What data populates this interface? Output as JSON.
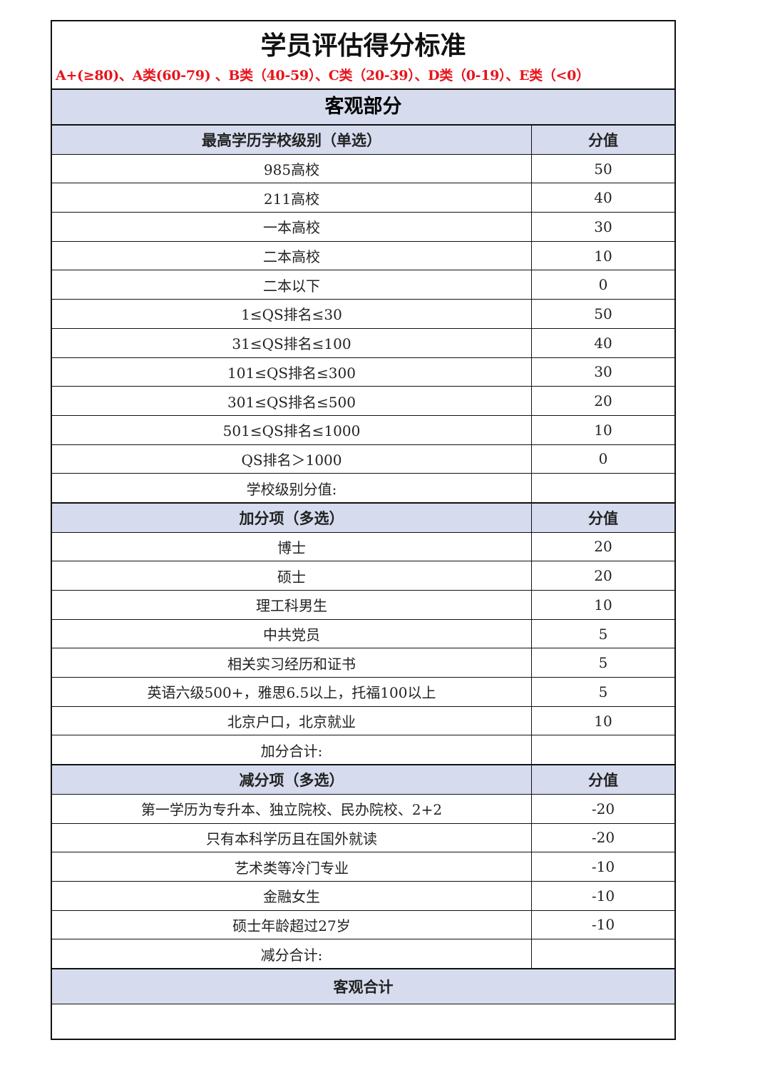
{
  "title": "学员评估得分标准",
  "grades": "A+(≥80)、A类(60-79) 、B类（40-59）、C类（20-39）、D类（0-19）、E类（<0）",
  "section": "客观部分",
  "school": {
    "header": "最高学历学校级别（单选）",
    "value_header": "分值",
    "rows": [
      [
        "985高校",
        "50"
      ],
      [
        "211高校",
        "40"
      ],
      [
        "一本高校",
        "30"
      ],
      [
        "二本高校",
        "10"
      ],
      [
        "二本以下",
        "0"
      ],
      [
        "1≤QS排名≤30",
        "50"
      ],
      [
        "31≤QS排名≤100",
        "40"
      ],
      [
        "101≤QS排名≤300",
        "30"
      ],
      [
        "301≤QS排名≤500",
        "20"
      ],
      [
        "501≤QS排名≤1000",
        "10"
      ],
      [
        "QS排名＞1000",
        "0"
      ]
    ],
    "total": "学校级别分值:"
  },
  "bonus": {
    "header": "加分项（多选）",
    "value_header": "分值",
    "rows": [
      [
        "博士",
        "20"
      ],
      [
        "硕士",
        "20"
      ],
      [
        "理工科男生",
        "10"
      ],
      [
        "中共党员",
        "5"
      ],
      [
        "相关实习经历和证书",
        "5"
      ],
      [
        "英语六级500+，雅思6.5以上，托福100以上",
        "5"
      ],
      [
        "北京户口，北京就业",
        "10"
      ]
    ],
    "total": "加分合计:"
  },
  "penalty": {
    "header": "减分项（多选）",
    "value_header": "分值",
    "rows": [
      [
        "第一学历为专升本、独立院校、民办院校、2+2",
        "-20"
      ],
      [
        "只有本科学历且在国外就读",
        "-20"
      ],
      [
        "艺术类等冷门专业",
        "-10"
      ],
      [
        "金融女生",
        "-10"
      ],
      [
        "硕士年龄超过27岁",
        "-10"
      ]
    ],
    "total": "减分合计:"
  },
  "objective_total": "客观合计"
}
